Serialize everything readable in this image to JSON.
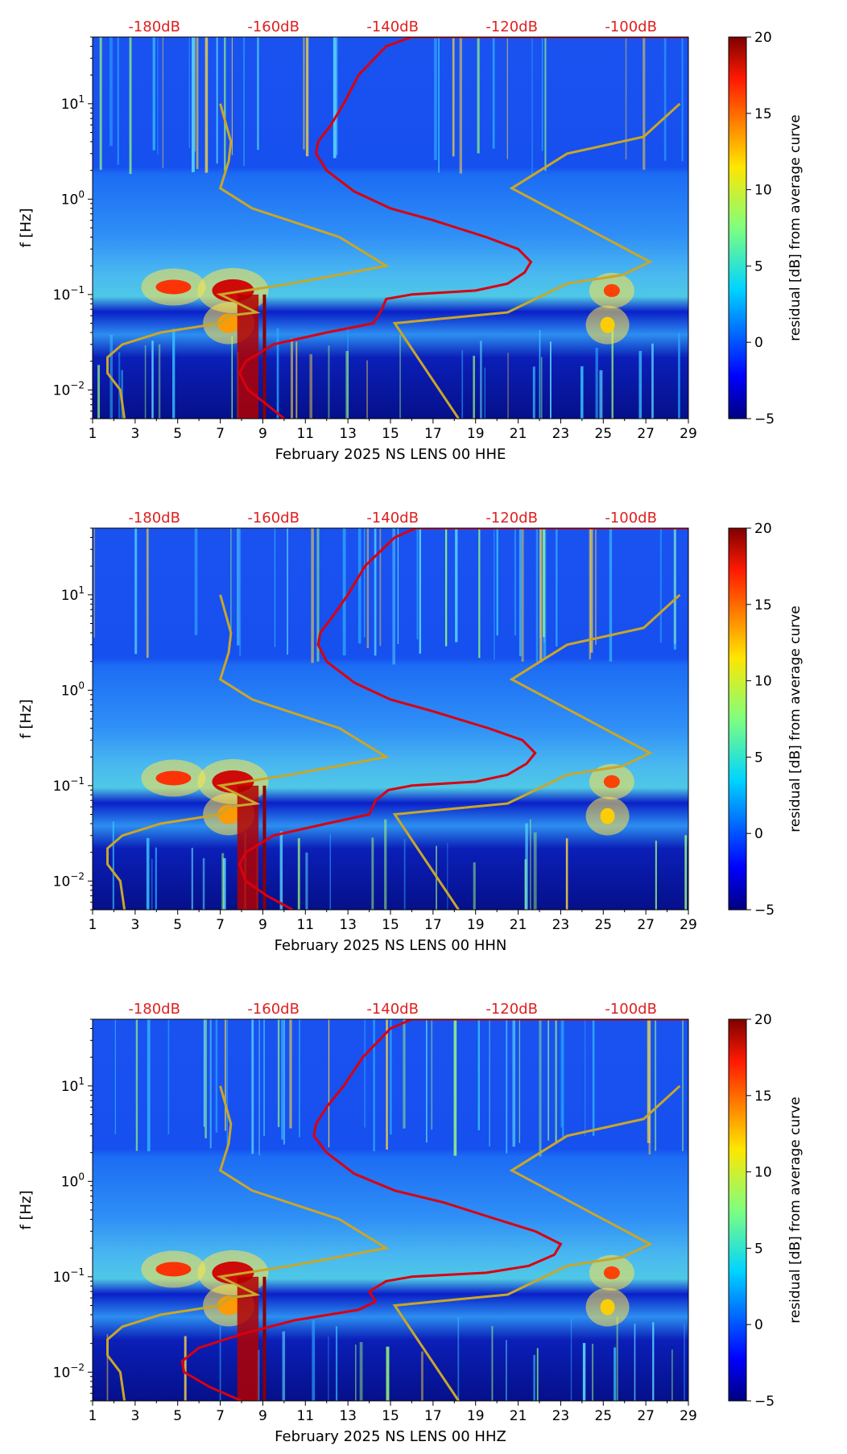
{
  "figure": {
    "colorbar_label": "residual [dB] from average curve"
  },
  "colors": {
    "noise_curve": "#d9000f",
    "model_curve": "#c9a62a",
    "top_tick_label": "#e02020",
    "axis": "#000000",
    "colormap": [
      "#00007f",
      "#0000ff",
      "#0080ff",
      "#00ffff",
      "#80ff80",
      "#ffff00",
      "#ff8000",
      "#ff0000",
      "#7f0000"
    ]
  },
  "chart_data": [
    {
      "type": "heatmap",
      "id": "HHE",
      "xlabel": "February 2025 NS LENS 00 HHE",
      "ylabel": "f [Hz]",
      "x_ticks": [
        "1",
        "3",
        "5",
        "7",
        "9",
        "11",
        "13",
        "15",
        "17",
        "19",
        "21",
        "23",
        "25",
        "27",
        "29"
      ],
      "xlim": [
        1,
        29
      ],
      "y_scale": "log",
      "ylim": [
        0.005,
        50
      ],
      "y_ticks": [
        {
          "value": 10,
          "base": "10",
          "exp": "1"
        },
        {
          "value": 1,
          "base": "10",
          "exp": "0"
        },
        {
          "value": 0.1,
          "base": "10",
          "exp": "−1"
        },
        {
          "value": 0.01,
          "base": "10",
          "exp": "−2"
        }
      ],
      "top_axis_label_xs": [
        3.9,
        9.5,
        15.1,
        20.7,
        26.3
      ],
      "top_axis_labels": [
        "-180dB",
        "-160dB",
        "-140dB",
        "-120dB",
        "-100dB"
      ],
      "colorbar": {
        "range": [
          -5,
          20
        ],
        "ticks": [
          "20",
          "15",
          "10",
          "5",
          "0",
          "−5"
        ],
        "tick_values": [
          20,
          15,
          10,
          5,
          0,
          -5
        ]
      },
      "noise_curve": [
        [
          10,
          0.005
        ],
        [
          9.2,
          0.007
        ],
        [
          8.3,
          0.01
        ],
        [
          7.9,
          0.015
        ],
        [
          8.2,
          0.02
        ],
        [
          9.5,
          0.03
        ],
        [
          12,
          0.04
        ],
        [
          14.2,
          0.05
        ],
        [
          14.6,
          0.07
        ],
        [
          14.8,
          0.09
        ],
        [
          16,
          0.1
        ],
        [
          19,
          0.11
        ],
        [
          20.5,
          0.13
        ],
        [
          21.3,
          0.17
        ],
        [
          21.6,
          0.22
        ],
        [
          21,
          0.3
        ],
        [
          19.5,
          0.4
        ],
        [
          17,
          0.6
        ],
        [
          15,
          0.8
        ],
        [
          13.3,
          1.2
        ],
        [
          12,
          2
        ],
        [
          11.5,
          3
        ],
        [
          11.6,
          4
        ],
        [
          12.2,
          6
        ],
        [
          12.8,
          10
        ],
        [
          13.5,
          20
        ],
        [
          14.8,
          40
        ],
        [
          16,
          50
        ],
        [
          29,
          50
        ]
      ],
      "model_curve_a": [
        [
          2.5,
          0.005
        ],
        [
          2.3,
          0.01
        ],
        [
          1.7,
          0.015
        ],
        [
          1.7,
          0.022
        ],
        [
          2.4,
          0.03
        ],
        [
          4.2,
          0.04
        ],
        [
          7,
          0.05
        ],
        [
          7.4,
          0.06
        ],
        [
          8.7,
          0.065
        ],
        [
          7,
          0.1
        ],
        [
          10.3,
          0.13
        ],
        [
          12.5,
          0.16
        ],
        [
          14.8,
          0.2
        ],
        [
          12.6,
          0.4
        ],
        [
          8.5,
          0.8
        ],
        [
          7,
          1.3
        ],
        [
          7.4,
          2.5
        ],
        [
          7.5,
          4
        ],
        [
          7,
          10
        ]
      ],
      "model_curve_b": [
        [
          18.2,
          0.005
        ],
        [
          15.2,
          0.05
        ],
        [
          20.5,
          0.065
        ],
        [
          23.3,
          0.13
        ],
        [
          25.9,
          0.16
        ],
        [
          27.2,
          0.22
        ],
        [
          20.7,
          1.3
        ],
        [
          23.3,
          3
        ],
        [
          26.9,
          4.5
        ],
        [
          28.6,
          10
        ]
      ]
    },
    {
      "type": "heatmap",
      "id": "HHN",
      "xlabel": "February 2025 NS LENS 00 HHN",
      "ylabel": "f [Hz]",
      "x_ticks": [
        "1",
        "3",
        "5",
        "7",
        "9",
        "11",
        "13",
        "15",
        "17",
        "19",
        "21",
        "23",
        "25",
        "27",
        "29"
      ],
      "xlim": [
        1,
        29
      ],
      "y_scale": "log",
      "ylim": [
        0.005,
        50
      ],
      "y_ticks": [
        {
          "value": 10,
          "base": "10",
          "exp": "1"
        },
        {
          "value": 1,
          "base": "10",
          "exp": "0"
        },
        {
          "value": 0.1,
          "base": "10",
          "exp": "−1"
        },
        {
          "value": 0.01,
          "base": "10",
          "exp": "−2"
        }
      ],
      "top_axis_label_xs": [
        3.9,
        9.5,
        15.1,
        20.7,
        26.3
      ],
      "top_axis_labels": [
        "-180dB",
        "-160dB",
        "-140dB",
        "-120dB",
        "-100dB"
      ],
      "colorbar": {
        "range": [
          -5,
          20
        ],
        "ticks": [
          "20",
          "15",
          "10",
          "5",
          "0",
          "−5"
        ],
        "tick_values": [
          20,
          15,
          10,
          5,
          0,
          -5
        ]
      },
      "noise_curve": [
        [
          10.4,
          0.005
        ],
        [
          9.2,
          0.007
        ],
        [
          8.2,
          0.01
        ],
        [
          7.9,
          0.015
        ],
        [
          8.2,
          0.02
        ],
        [
          9.5,
          0.03
        ],
        [
          12,
          0.04
        ],
        [
          14,
          0.05
        ],
        [
          14.3,
          0.07
        ],
        [
          14.9,
          0.09
        ],
        [
          16,
          0.1
        ],
        [
          19,
          0.11
        ],
        [
          20.5,
          0.13
        ],
        [
          21.4,
          0.17
        ],
        [
          21.8,
          0.22
        ],
        [
          21.2,
          0.3
        ],
        [
          19.6,
          0.4
        ],
        [
          17,
          0.6
        ],
        [
          15,
          0.8
        ],
        [
          13.3,
          1.2
        ],
        [
          12,
          2
        ],
        [
          11.6,
          3
        ],
        [
          11.7,
          4
        ],
        [
          12.3,
          6
        ],
        [
          13,
          10
        ],
        [
          13.8,
          20
        ],
        [
          15.2,
          40
        ],
        [
          16.2,
          50
        ],
        [
          29,
          50
        ]
      ],
      "model_curve_a": [
        [
          2.5,
          0.005
        ],
        [
          2.3,
          0.01
        ],
        [
          1.7,
          0.015
        ],
        [
          1.7,
          0.022
        ],
        [
          2.4,
          0.03
        ],
        [
          4.2,
          0.04
        ],
        [
          7,
          0.05
        ],
        [
          7.4,
          0.06
        ],
        [
          8.7,
          0.065
        ],
        [
          7,
          0.1
        ],
        [
          10.3,
          0.13
        ],
        [
          12.5,
          0.16
        ],
        [
          14.8,
          0.2
        ],
        [
          12.6,
          0.4
        ],
        [
          8.5,
          0.8
        ],
        [
          7,
          1.3
        ],
        [
          7.4,
          2.5
        ],
        [
          7.5,
          4
        ],
        [
          7,
          10
        ]
      ],
      "model_curve_b": [
        [
          18.2,
          0.005
        ],
        [
          15.2,
          0.05
        ],
        [
          20.5,
          0.065
        ],
        [
          23.3,
          0.13
        ],
        [
          25.9,
          0.16
        ],
        [
          27.2,
          0.22
        ],
        [
          20.7,
          1.3
        ],
        [
          23.3,
          3
        ],
        [
          26.9,
          4.5
        ],
        [
          28.6,
          10
        ]
      ]
    },
    {
      "type": "heatmap",
      "id": "HHZ",
      "xlabel": "February 2025 NS LENS 00 HHZ",
      "ylabel": "f [Hz]",
      "x_ticks": [
        "1",
        "3",
        "5",
        "7",
        "9",
        "11",
        "13",
        "15",
        "17",
        "19",
        "21",
        "23",
        "25",
        "27",
        "29"
      ],
      "xlim": [
        1,
        29
      ],
      "y_scale": "log",
      "ylim": [
        0.005,
        50
      ],
      "y_ticks": [
        {
          "value": 10,
          "base": "10",
          "exp": "1"
        },
        {
          "value": 1,
          "base": "10",
          "exp": "0"
        },
        {
          "value": 0.1,
          "base": "10",
          "exp": "−1"
        },
        {
          "value": 0.01,
          "base": "10",
          "exp": "−2"
        }
      ],
      "top_axis_label_xs": [
        3.9,
        9.5,
        15.1,
        20.7,
        26.3
      ],
      "top_axis_labels": [
        "-180dB",
        "-160dB",
        "-140dB",
        "-120dB",
        "-100dB"
      ],
      "colorbar": {
        "range": [
          -5,
          20
        ],
        "ticks": [
          "20",
          "15",
          "10",
          "5",
          "0",
          "−5"
        ],
        "tick_values": [
          20,
          15,
          10,
          5,
          0,
          -5
        ]
      },
      "noise_curve": [
        [
          8,
          0.005
        ],
        [
          6.5,
          0.007
        ],
        [
          5.3,
          0.01
        ],
        [
          5.2,
          0.013
        ],
        [
          6,
          0.018
        ],
        [
          8,
          0.025
        ],
        [
          10.5,
          0.035
        ],
        [
          13.5,
          0.045
        ],
        [
          14.3,
          0.055
        ],
        [
          14,
          0.07
        ],
        [
          14.8,
          0.09
        ],
        [
          16,
          0.1
        ],
        [
          19.5,
          0.11
        ],
        [
          21.5,
          0.13
        ],
        [
          22.7,
          0.17
        ],
        [
          23,
          0.22
        ],
        [
          21.8,
          0.3
        ],
        [
          20,
          0.4
        ],
        [
          17.5,
          0.6
        ],
        [
          15.2,
          0.8
        ],
        [
          13.3,
          1.2
        ],
        [
          12,
          2
        ],
        [
          11.4,
          3
        ],
        [
          11.5,
          4
        ],
        [
          12,
          6
        ],
        [
          12.8,
          10
        ],
        [
          13.7,
          20
        ],
        [
          15,
          40
        ],
        [
          16,
          50
        ],
        [
          29,
          50
        ]
      ],
      "model_curve_a": [
        [
          2.5,
          0.005
        ],
        [
          2.3,
          0.01
        ],
        [
          1.7,
          0.015
        ],
        [
          1.7,
          0.022
        ],
        [
          2.4,
          0.03
        ],
        [
          4.2,
          0.04
        ],
        [
          7,
          0.05
        ],
        [
          7.4,
          0.06
        ],
        [
          8.7,
          0.065
        ],
        [
          7,
          0.1
        ],
        [
          10.3,
          0.13
        ],
        [
          12.5,
          0.16
        ],
        [
          14.8,
          0.2
        ],
        [
          12.6,
          0.4
        ],
        [
          8.5,
          0.8
        ],
        [
          7,
          1.3
        ],
        [
          7.4,
          2.5
        ],
        [
          7.5,
          4
        ],
        [
          7,
          10
        ]
      ],
      "model_curve_b": [
        [
          18.2,
          0.005
        ],
        [
          15.2,
          0.05
        ],
        [
          20.5,
          0.065
        ],
        [
          23.3,
          0.13
        ],
        [
          25.9,
          0.16
        ],
        [
          27.2,
          0.22
        ],
        [
          20.7,
          1.3
        ],
        [
          23.3,
          3
        ],
        [
          26.9,
          4.5
        ],
        [
          28.6,
          10
        ]
      ]
    }
  ]
}
